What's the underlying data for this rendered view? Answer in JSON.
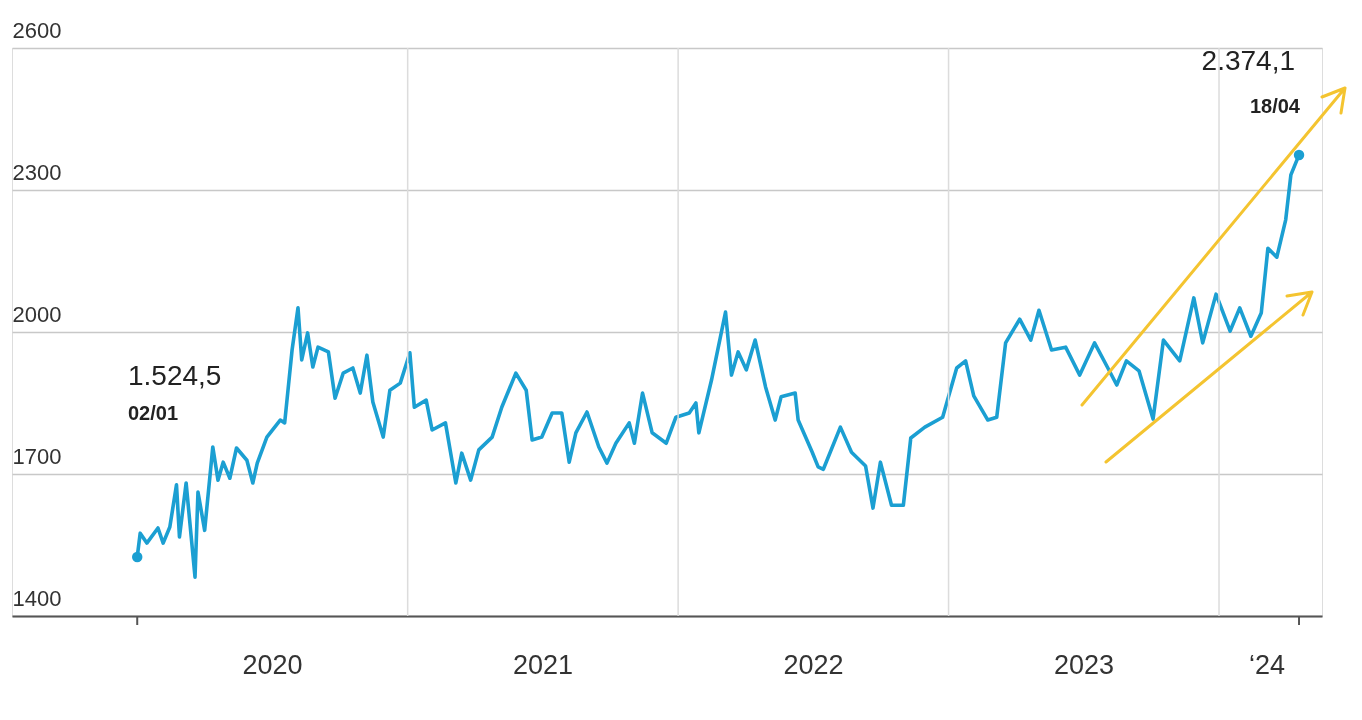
{
  "chart_data": {
    "type": "line",
    "x": [
      "2020-01-02",
      "2020-01-06",
      "2020-01-15",
      "2020-01-30",
      "2020-02-06",
      "2020-02-15",
      "2020-02-24",
      "2020-02-28",
      "2020-03-08",
      "2020-03-20",
      "2020-03-24",
      "2020-04-02",
      "2020-04-13",
      "2020-04-20",
      "2020-04-27",
      "2020-05-06",
      "2020-05-15",
      "2020-05-29",
      "2020-06-06",
      "2020-06-12",
      "2020-06-25",
      "2020-07-13",
      "2020-07-19",
      "2020-07-29",
      "2020-08-06",
      "2020-08-11",
      "2020-08-19",
      "2020-08-26",
      "2020-09-02",
      "2020-09-16",
      "2020-09-25",
      "2020-10-06",
      "2020-10-19",
      "2020-10-29",
      "2020-11-07",
      "2020-11-15",
      "2020-11-29",
      "2020-12-08",
      "2020-12-22",
      "2021-01-04",
      "2021-01-10",
      "2021-01-26",
      "2021-02-03",
      "2021-02-21",
      "2021-03-07",
      "2021-03-15",
      "2021-03-27",
      "2021-04-07",
      "2021-04-25",
      "2021-05-08",
      "2021-05-27",
      "2021-06-10",
      "2021-06-18",
      "2021-07-01",
      "2021-07-15",
      "2021-07-28",
      "2021-08-07",
      "2021-08-16",
      "2021-08-31",
      "2021-09-16",
      "2021-09-27",
      "2021-10-09",
      "2021-10-27",
      "2021-11-03",
      "2021-11-14",
      "2021-11-27",
      "2021-12-16",
      "2021-12-29",
      "2022-01-16",
      "2022-01-25",
      "2022-01-29",
      "2022-02-15",
      "2022-03-06",
      "2022-03-14",
      "2022-03-23",
      "2022-04-03",
      "2022-04-15",
      "2022-04-29",
      "2022-05-12",
      "2022-05-20",
      "2022-06-08",
      "2022-06-12",
      "2022-07-01",
      "2022-07-09",
      "2022-07-16",
      "2022-08-08",
      "2022-08-23",
      "2022-09-11",
      "2022-09-21",
      "2022-10-01",
      "2022-10-16",
      "2022-11-01",
      "2022-11-11",
      "2022-11-30",
      "2022-12-24",
      "2023-01-12",
      "2023-01-24",
      "2023-02-04",
      "2023-02-23",
      "2023-03-07",
      "2023-03-19",
      "2023-04-07",
      "2023-04-22",
      "2023-05-03",
      "2023-05-20",
      "2023-06-08",
      "2023-06-27",
      "2023-07-17",
      "2023-08-04",
      "2023-08-16",
      "2023-08-29",
      "2023-09-15",
      "2023-10-04",
      "2023-10-18",
      "2023-11-09",
      "2023-11-28",
      "2023-12-10",
      "2023-12-28",
      "2024-01-16",
      "2024-01-29",
      "2024-02-13",
      "2024-02-27",
      "2024-03-07",
      "2024-03-19",
      "2024-03-31",
      "2024-04-07",
      "2024-04-18"
    ],
    "series": [
      {
        "color": "#1b9fd2",
        "values": [
          1524.5,
          1575,
          1554,
          1586,
          1554,
          1588,
          1677,
          1567,
          1681,
          1482,
          1662,
          1581,
          1757,
          1687,
          1725,
          1691,
          1755,
          1729,
          1681,
          1723,
          1778,
          1814,
          1808,
          1962,
          2051,
          1941,
          1998,
          1926,
          1968,
          1958,
          1860,
          1913,
          1924,
          1871,
          1951,
          1852,
          1778,
          1877,
          1892,
          1956,
          1841,
          1856,
          1793,
          1808,
          1681,
          1744,
          1687,
          1751,
          1778,
          1841,
          1913,
          1877,
          1772,
          1778,
          1829,
          1829,
          1725,
          1787,
          1831,
          1757,
          1723,
          1765,
          1808,
          1765,
          1871,
          1787,
          1765,
          1820,
          1829,
          1850,
          1787,
          1898,
          2042,
          1909,
          1958,
          1920,
          1983,
          1884,
          1814,
          1863,
          1871,
          1814,
          1746,
          1715,
          1710,
          1799,
          1746,
          1717,
          1628,
          1725,
          1634,
          1634,
          1776,
          1799,
          1820,
          1924,
          1939,
          1865,
          1814,
          1820,
          1977,
          2027,
          1983,
          2046,
          1962,
          1968,
          1909,
          1977,
          1924,
          1888,
          1939,
          1918,
          1816,
          1983,
          1939,
          2072,
          1977,
          2080,
          2002,
          2051,
          1991,
          2040,
          2177,
          2158,
          2237,
          2332,
          2374.1
        ]
      }
    ],
    "xlim": [
      "2019-07-17",
      "2024-05-19"
    ],
    "xticks": [
      {
        "value": "2020-01-02",
        "label": null
      },
      {
        "value": "2020-07-02",
        "label": "2020"
      },
      {
        "value": "2021-07-02",
        "label": "2021"
      },
      {
        "value": "2022-07-02",
        "label": "2022"
      },
      {
        "value": "2023-07-02",
        "label": "2023"
      },
      {
        "value": "2024-03-05",
        "label": "‘24"
      },
      {
        "value": "2024-04-18",
        "label": null
      }
    ],
    "ylim": [
      1400,
      2600
    ],
    "yticks": [
      1400,
      1700,
      2000,
      2300,
      2600
    ],
    "grid": "y",
    "marker": "none",
    "line_style": "solid",
    "ref_lines": [
      {
        "axis": "x",
        "value": "2021-01-01",
        "color": "#dcdcdc"
      },
      {
        "axis": "x",
        "value": "2022-01-01",
        "color": "#dcdcdc"
      },
      {
        "axis": "x",
        "value": "2023-01-01",
        "color": "#dcdcdc"
      },
      {
        "axis": "x",
        "value": "2024-01-01",
        "color": "#dcdcdc"
      }
    ],
    "annotations": [
      "1.524,5",
      "02/01",
      "2.374,1",
      "18/04"
    ]
  }
}
